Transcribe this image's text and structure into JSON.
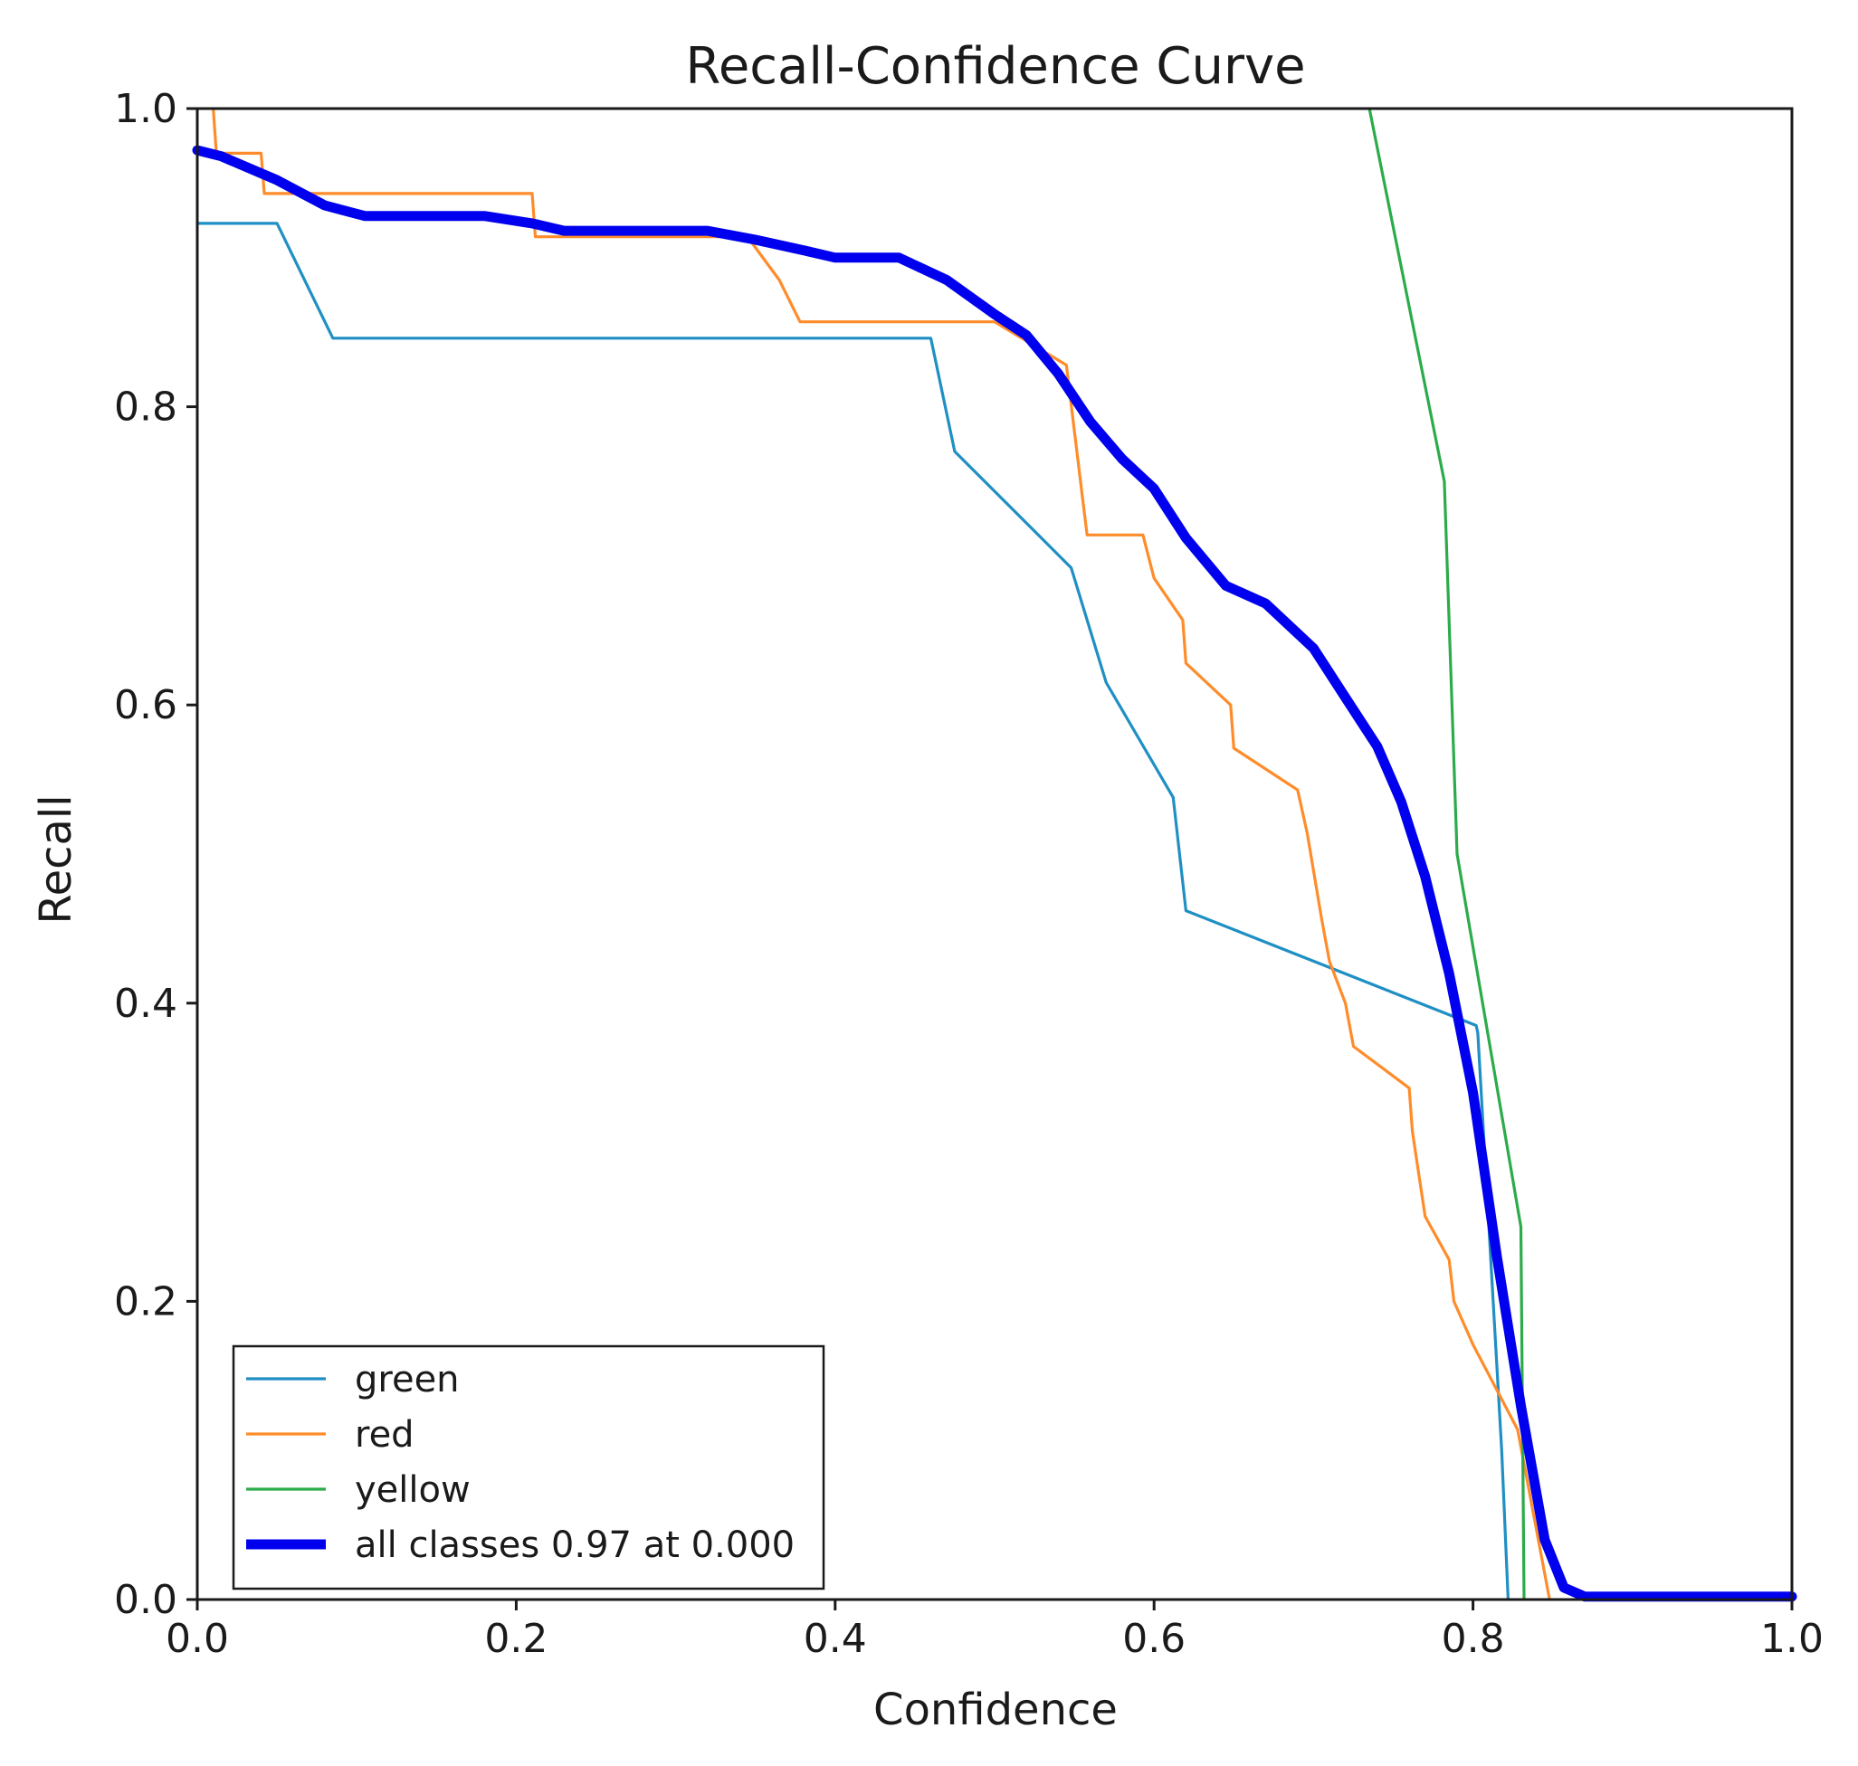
{
  "chart_data": {
    "type": "line",
    "title": "Recall-Confidence Curve",
    "xlabel": "Confidence",
    "ylabel": "Recall",
    "xlim": [
      0,
      1
    ],
    "ylim": [
      0,
      1
    ],
    "xticks": [
      "0.0",
      "0.2",
      "0.4",
      "0.6",
      "0.8",
      "1.0"
    ],
    "yticks": [
      "0.0",
      "0.2",
      "0.4",
      "0.6",
      "0.8",
      "1.0"
    ],
    "grid": false,
    "legend_position": "bottom-left",
    "series": [
      {
        "name": "green",
        "color": "#1f8fc4",
        "width": "thin",
        "points": [
          [
            0,
            0.923
          ],
          [
            0.05,
            0.923
          ],
          [
            0.085,
            0.846
          ],
          [
            0.46,
            0.846
          ],
          [
            0.475,
            0.77
          ],
          [
            0.548,
            0.692
          ],
          [
            0.57,
            0.615
          ],
          [
            0.612,
            0.538
          ],
          [
            0.62,
            0.462
          ],
          [
            0.802,
            0.385
          ],
          [
            0.803,
            0.38
          ],
          [
            0.818,
            0.1
          ],
          [
            0.822,
            0
          ]
        ]
      },
      {
        "name": "red",
        "color": "#ff8c2a",
        "width": "thin",
        "points": [
          [
            0.01,
            1.0
          ],
          [
            0.012,
            0.97
          ],
          [
            0.04,
            0.97
          ],
          [
            0.042,
            0.943
          ],
          [
            0.21,
            0.943
          ],
          [
            0.212,
            0.914
          ],
          [
            0.345,
            0.914
          ],
          [
            0.365,
            0.885
          ],
          [
            0.378,
            0.857
          ],
          [
            0.5,
            0.857
          ],
          [
            0.545,
            0.828
          ],
          [
            0.555,
            0.74
          ],
          [
            0.558,
            0.714
          ],
          [
            0.593,
            0.714
          ],
          [
            0.6,
            0.685
          ],
          [
            0.618,
            0.657
          ],
          [
            0.62,
            0.628
          ],
          [
            0.648,
            0.6
          ],
          [
            0.65,
            0.571
          ],
          [
            0.69,
            0.543
          ],
          [
            0.696,
            0.514
          ],
          [
            0.705,
            0.457
          ],
          [
            0.71,
            0.428
          ],
          [
            0.72,
            0.4
          ],
          [
            0.725,
            0.371
          ],
          [
            0.76,
            0.343
          ],
          [
            0.762,
            0.314
          ],
          [
            0.77,
            0.257
          ],
          [
            0.785,
            0.228
          ],
          [
            0.788,
            0.2
          ],
          [
            0.8,
            0.171
          ],
          [
            0.828,
            0.114
          ],
          [
            0.848,
            0
          ]
        ]
      },
      {
        "name": "yellow",
        "color": "#2cab4a",
        "width": "thin",
        "points": [
          [
            0.735,
            1.0
          ],
          [
            0.782,
            0.75
          ],
          [
            0.79,
            0.5
          ],
          [
            0.83,
            0.25
          ],
          [
            0.832,
            0
          ]
        ]
      },
      {
        "name": "all classes 0.97 at 0.000",
        "color": "#0000ee",
        "width": "thick",
        "points": [
          [
            0,
            0.972
          ],
          [
            0.015,
            0.968
          ],
          [
            0.05,
            0.952
          ],
          [
            0.08,
            0.935
          ],
          [
            0.105,
            0.928
          ],
          [
            0.18,
            0.928
          ],
          [
            0.21,
            0.923
          ],
          [
            0.23,
            0.918
          ],
          [
            0.32,
            0.918
          ],
          [
            0.35,
            0.912
          ],
          [
            0.38,
            0.905
          ],
          [
            0.4,
            0.9
          ],
          [
            0.44,
            0.9
          ],
          [
            0.47,
            0.885
          ],
          [
            0.5,
            0.862
          ],
          [
            0.52,
            0.848
          ],
          [
            0.54,
            0.822
          ],
          [
            0.56,
            0.79
          ],
          [
            0.58,
            0.765
          ],
          [
            0.6,
            0.745
          ],
          [
            0.62,
            0.712
          ],
          [
            0.645,
            0.68
          ],
          [
            0.67,
            0.668
          ],
          [
            0.7,
            0.638
          ],
          [
            0.72,
            0.605
          ],
          [
            0.74,
            0.572
          ],
          [
            0.755,
            0.535
          ],
          [
            0.77,
            0.485
          ],
          [
            0.785,
            0.42
          ],
          [
            0.8,
            0.34
          ],
          [
            0.815,
            0.23
          ],
          [
            0.83,
            0.13
          ],
          [
            0.845,
            0.04
          ],
          [
            0.857,
            0.008
          ],
          [
            0.87,
            0.002
          ],
          [
            0.9,
            0.002
          ],
          [
            1.0,
            0.002
          ]
        ]
      }
    ]
  }
}
